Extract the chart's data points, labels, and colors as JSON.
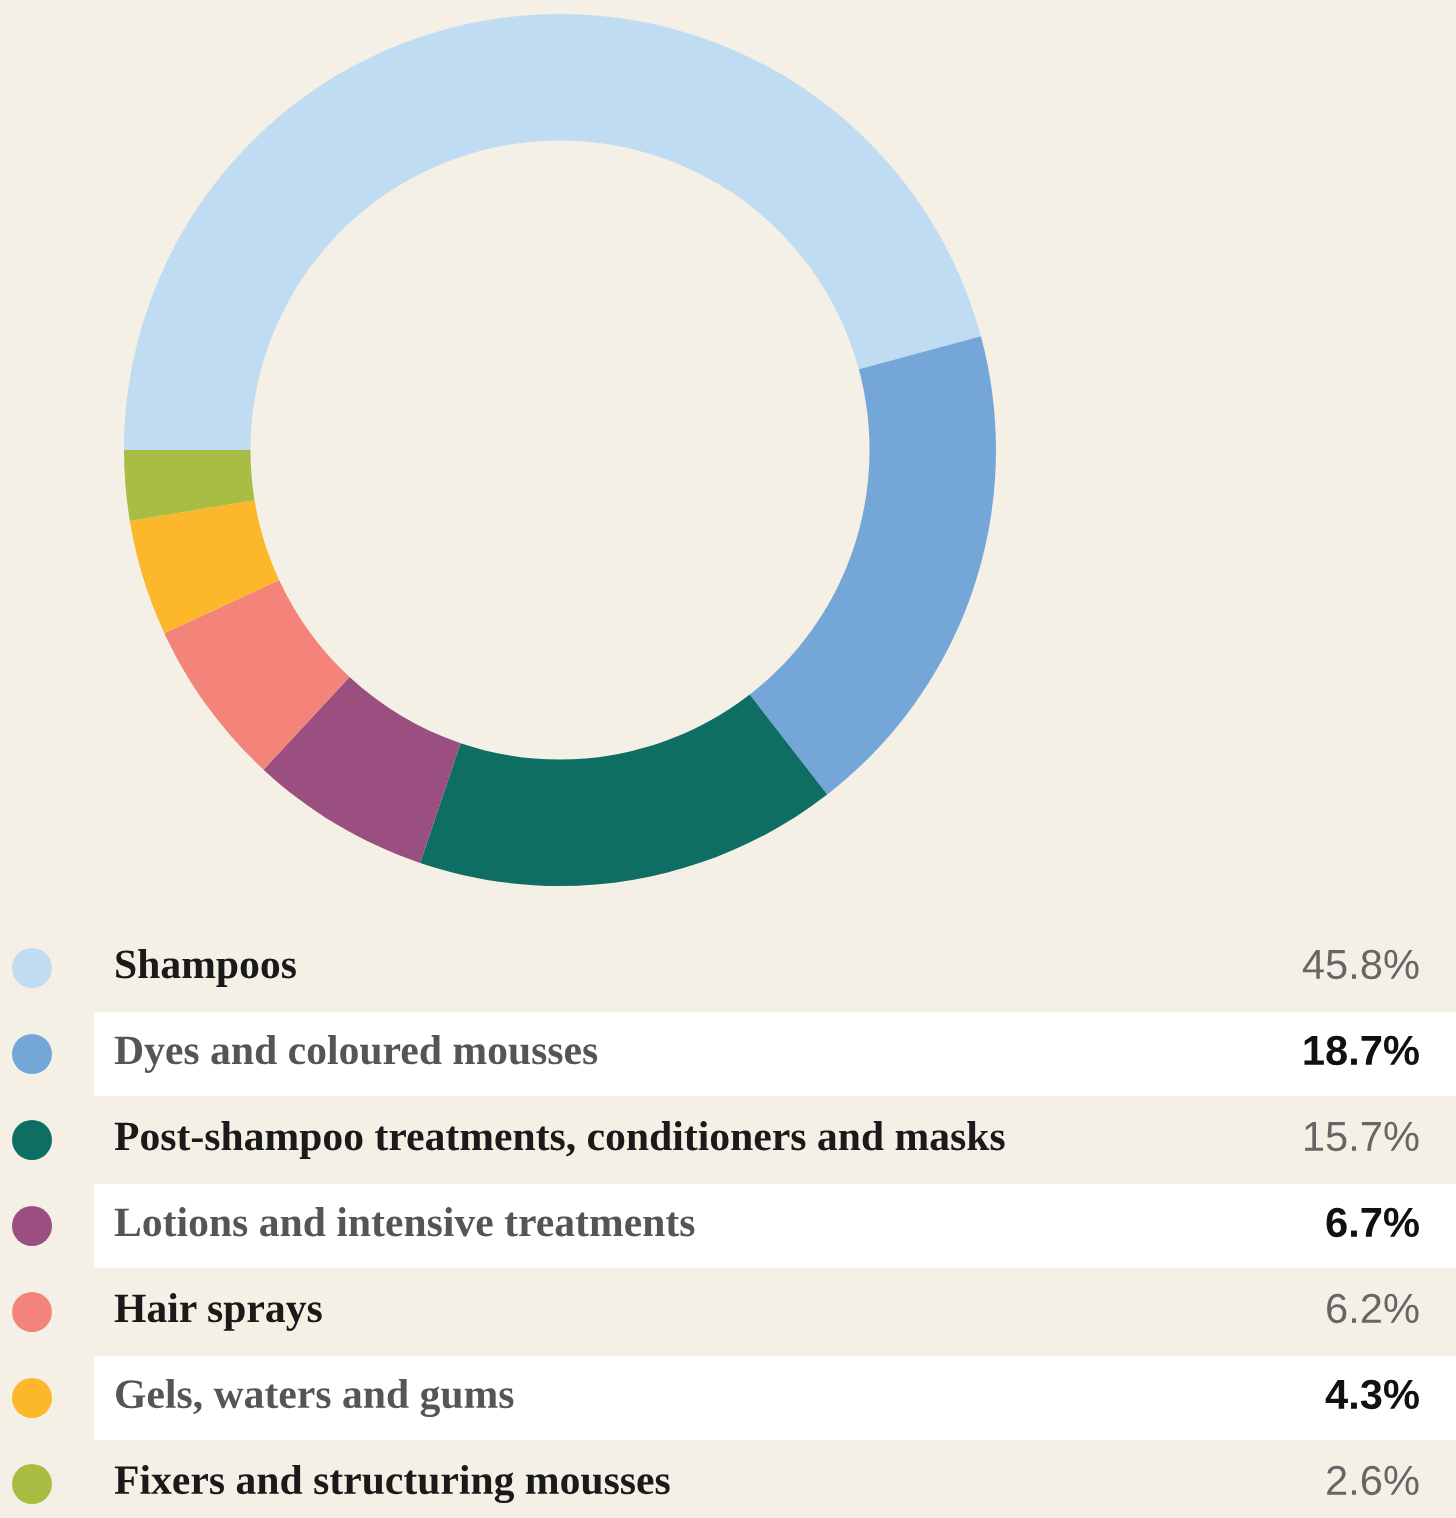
{
  "chart_data": {
    "type": "donut",
    "categories": [
      "Shampoos",
      "Dyes and coloured mousses",
      "Post-shampoo treatments, conditioners and masks",
      "Lotions and intensive treatments",
      "Hair sprays",
      "Gels, waters and gums",
      "Fixers and structuring mousses"
    ],
    "values": [
      45.8,
      18.7,
      15.7,
      6.7,
      6.2,
      4.3,
      2.6
    ],
    "colors": [
      "#bfdcf2",
      "#74a7d8",
      "#0e6e64",
      "#9b4f80",
      "#f4837a",
      "#fcb72a",
      "#a9bc44"
    ],
    "value_labels": [
      "45.8%",
      "18.7%",
      "15.7%",
      "6.7%",
      "6.2%",
      "4.3%",
      "2.6%"
    ],
    "legend": "bottom"
  }
}
